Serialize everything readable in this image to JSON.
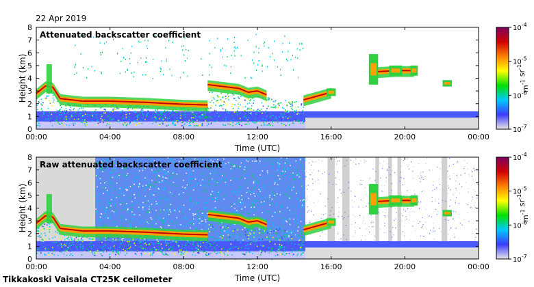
{
  "date": "22 Apr 2019",
  "footer": "Tikkakoski Vaisala CT25K ceilometer",
  "colorbar": {
    "stops": [
      "#e6e6e6",
      "#3c3cff",
      "#00c8ff",
      "#00e000",
      "#ffff00",
      "#ff8000",
      "#d00000",
      "#800060"
    ],
    "ticks": [
      "10-7",
      "10-6",
      "10-5",
      "10-4"
    ],
    "unit_label": "m-1 sr-1"
  },
  "chart_data": [
    {
      "type": "heatmap",
      "title": "Attenuated backscatter coefficient",
      "xlabel": "Time (UTC)",
      "ylabel": "Height (km)",
      "xlim": [
        0,
        24
      ],
      "ylim": [
        0,
        8
      ],
      "x_ticks": [
        "00:00",
        "04:00",
        "08:00",
        "12:00",
        "16:00",
        "20:00",
        "00:00"
      ],
      "y_ticks": [
        "0",
        "1",
        "2",
        "3",
        "4",
        "5",
        "6",
        "7",
        "8"
      ],
      "cloud_layer": [
        {
          "t": 0.0,
          "h": 2.8
        },
        {
          "t": 0.5,
          "h": 3.4
        },
        {
          "t": 0.9,
          "h": 3.3
        },
        {
          "t": 1.3,
          "h": 2.4
        },
        {
          "t": 2.5,
          "h": 2.2
        },
        {
          "t": 4.0,
          "h": 2.2
        },
        {
          "t": 6.0,
          "h": 2.1
        },
        {
          "t": 8.0,
          "h": 1.95
        },
        {
          "t": 9.3,
          "h": 1.9
        },
        {
          "t": 9.3,
          "h": 3.5
        },
        {
          "t": 11.0,
          "h": 3.2
        },
        {
          "t": 11.5,
          "h": 2.9
        },
        {
          "t": 12.0,
          "h": 3.0
        },
        {
          "t": 12.5,
          "h": 2.7
        },
        {
          "t": 14.5,
          "h": 2.3
        },
        {
          "t": 16.0,
          "h": 2.9
        },
        {
          "t": 18.3,
          "h": 4.5
        },
        {
          "t": 19.5,
          "h": 4.6
        },
        {
          "t": 20.5,
          "h": 4.6
        },
        {
          "t": 22.3,
          "h": 3.6
        }
      ]
    },
    {
      "type": "heatmap",
      "title": "Raw attenuated backscatter coefficient",
      "xlabel": "Time (UTC)",
      "ylabel": "Height (km)",
      "xlim": [
        0,
        24
      ],
      "ylim": [
        0,
        8
      ],
      "x_ticks": [
        "00:00",
        "04:00",
        "08:00",
        "12:00",
        "16:00",
        "20:00",
        "00:00"
      ],
      "y_ticks": [
        "0",
        "1",
        "2",
        "3",
        "4",
        "5",
        "6",
        "7",
        "8"
      ],
      "cloud_layer": [
        {
          "t": 0.0,
          "h": 2.8
        },
        {
          "t": 0.5,
          "h": 3.4
        },
        {
          "t": 0.9,
          "h": 3.3
        },
        {
          "t": 1.3,
          "h": 2.4
        },
        {
          "t": 2.5,
          "h": 2.2
        },
        {
          "t": 4.0,
          "h": 2.2
        },
        {
          "t": 6.0,
          "h": 2.1
        },
        {
          "t": 8.0,
          "h": 1.95
        },
        {
          "t": 9.3,
          "h": 1.9
        },
        {
          "t": 9.3,
          "h": 3.5
        },
        {
          "t": 11.0,
          "h": 3.2
        },
        {
          "t": 11.5,
          "h": 2.9
        },
        {
          "t": 12.0,
          "h": 3.0
        },
        {
          "t": 12.5,
          "h": 2.7
        },
        {
          "t": 14.5,
          "h": 2.3
        },
        {
          "t": 16.0,
          "h": 2.9
        },
        {
          "t": 18.3,
          "h": 4.5
        },
        {
          "t": 19.5,
          "h": 4.6
        },
        {
          "t": 20.5,
          "h": 4.6
        },
        {
          "t": 22.3,
          "h": 3.6
        }
      ]
    }
  ]
}
